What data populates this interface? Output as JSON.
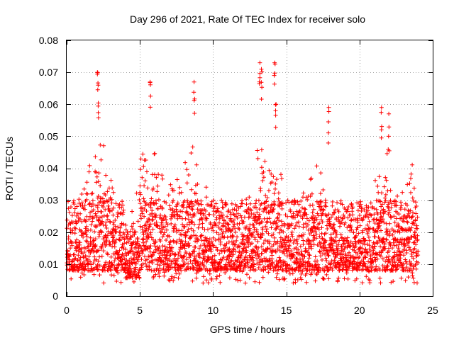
{
  "chart_data": {
    "type": "scatter",
    "title": "Day 296 of 2021, Rate Of TEC Index for receiver solo",
    "xlabel": "GPS time / hours",
    "ylabel": "ROTI / TECUs",
    "xlim": [
      0,
      25
    ],
    "ylim": [
      0,
      0.08
    ],
    "xticks": [
      0,
      5,
      10,
      15,
      20,
      25
    ],
    "yticks": [
      0,
      0.01,
      0.02,
      0.03,
      0.04,
      0.05,
      0.06,
      0.07,
      0.08
    ],
    "xtick_labels": [
      "0",
      "5",
      "10",
      "15",
      "20",
      "25"
    ],
    "ytick_labels": [
      "0",
      "0.01",
      "0.02",
      "0.03",
      "0.04",
      "0.05",
      "0.06",
      "0.07",
      "0.08"
    ],
    "grid": true,
    "marker": "+",
    "color": "#ff0000",
    "series": [
      {
        "name": "ROTI",
        "x_range": [
          0,
          24
        ],
        "typical_range": [
          0.008,
          0.03
        ],
        "peaks": [
          {
            "x": 2.1,
            "y": 0.07
          },
          {
            "x": 2.15,
            "y": 0.066
          },
          {
            "x": 5.7,
            "y": 0.067
          },
          {
            "x": 8.7,
            "y": 0.067
          },
          {
            "x": 13.2,
            "y": 0.073
          },
          {
            "x": 13.3,
            "y": 0.071
          },
          {
            "x": 14.2,
            "y": 0.073
          },
          {
            "x": 14.3,
            "y": 0.06
          },
          {
            "x": 17.9,
            "y": 0.059
          },
          {
            "x": 21.5,
            "y": 0.059
          },
          {
            "x": 22.0,
            "y": 0.057
          }
        ]
      }
    ]
  }
}
